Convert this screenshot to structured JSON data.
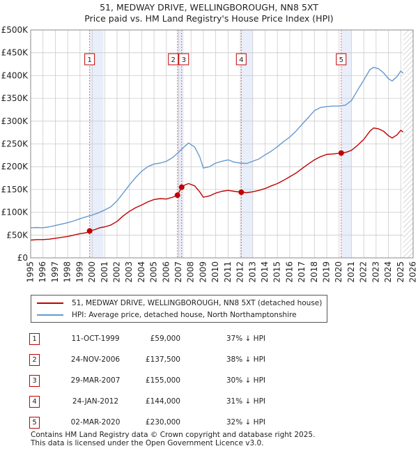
{
  "chart_data": {
    "type": "line",
    "title_line1": "51, MEDWAY DRIVE, WELLINGBOROUGH, NN8 5XT",
    "title_line2": "Price paid vs. HM Land Registry's House Price Index (HPI)",
    "xlim": [
      1995,
      2026
    ],
    "ylim": [
      0,
      500000
    ],
    "x_ticks": [
      1995,
      1996,
      1997,
      1998,
      1999,
      2000,
      2001,
      2002,
      2003,
      2004,
      2005,
      2006,
      2007,
      2008,
      2009,
      2010,
      2011,
      2012,
      2013,
      2014,
      2015,
      2016,
      2017,
      2018,
      2019,
      2020,
      2021,
      2022,
      2023,
      2024,
      2025,
      2026
    ],
    "y_ticks": [
      {
        "value": 0,
        "label": "£0"
      },
      {
        "value": 50000,
        "label": "£50K"
      },
      {
        "value": 100000,
        "label": "£100K"
      },
      {
        "value": 150000,
        "label": "£150K"
      },
      {
        "value": 200000,
        "label": "£200K"
      },
      {
        "value": 250000,
        "label": "£250K"
      },
      {
        "value": 300000,
        "label": "£300K"
      },
      {
        "value": 350000,
        "label": "£350K"
      },
      {
        "value": 400000,
        "label": "£400K"
      },
      {
        "value": 450000,
        "label": "£450K"
      },
      {
        "value": 500000,
        "label": "£500K"
      }
    ],
    "grid": true,
    "shaded_periods": [
      [
        1999.78,
        2000.9
      ],
      [
        2006.9,
        2007.4
      ],
      [
        2012.07,
        2013.0
      ],
      [
        2020.17,
        2021.0
      ]
    ],
    "hatch_from": 2025.2,
    "series": [
      {
        "name": "51, MEDWAY DRIVE, WELLINGBOROUGH, NN8 5XT (detached house)",
        "color": "#c00000",
        "points": [
          [
            1995.0,
            39000
          ],
          [
            1995.5,
            40000
          ],
          [
            1996.0,
            40000
          ],
          [
            1996.5,
            41000
          ],
          [
            1997.0,
            43000
          ],
          [
            1997.5,
            45000
          ],
          [
            1998.0,
            47000
          ],
          [
            1998.5,
            50000
          ],
          [
            1999.0,
            53000
          ],
          [
            1999.5,
            55000
          ],
          [
            1999.78,
            59000
          ],
          [
            2000.2,
            62000
          ],
          [
            2000.6,
            66000
          ],
          [
            2001.0,
            68000
          ],
          [
            2001.5,
            72000
          ],
          [
            2002.0,
            80000
          ],
          [
            2002.5,
            92000
          ],
          [
            2003.0,
            102000
          ],
          [
            2003.5,
            110000
          ],
          [
            2004.0,
            116000
          ],
          [
            2004.5,
            123000
          ],
          [
            2005.0,
            128000
          ],
          [
            2005.5,
            130000
          ],
          [
            2006.0,
            129000
          ],
          [
            2006.5,
            133000
          ],
          [
            2006.9,
            137500
          ],
          [
            2007.24,
            155000
          ],
          [
            2007.5,
            160000
          ],
          [
            2007.8,
            163000
          ],
          [
            2008.3,
            158000
          ],
          [
            2008.7,
            145000
          ],
          [
            2009.0,
            133000
          ],
          [
            2009.5,
            136000
          ],
          [
            2010.0,
            142000
          ],
          [
            2010.5,
            146000
          ],
          [
            2011.0,
            148000
          ],
          [
            2011.5,
            146000
          ],
          [
            2012.07,
            144000
          ],
          [
            2012.5,
            143000
          ],
          [
            2013.0,
            145000
          ],
          [
            2013.5,
            148000
          ],
          [
            2014.0,
            152000
          ],
          [
            2014.5,
            158000
          ],
          [
            2015.0,
            163000
          ],
          [
            2015.5,
            170000
          ],
          [
            2016.0,
            178000
          ],
          [
            2016.5,
            186000
          ],
          [
            2017.0,
            196000
          ],
          [
            2017.5,
            206000
          ],
          [
            2018.0,
            215000
          ],
          [
            2018.5,
            222000
          ],
          [
            2019.0,
            227000
          ],
          [
            2019.5,
            228000
          ],
          [
            2020.17,
            230000
          ],
          [
            2020.6,
            232000
          ],
          [
            2021.0,
            236000
          ],
          [
            2021.5,
            247000
          ],
          [
            2022.0,
            260000
          ],
          [
            2022.5,
            278000
          ],
          [
            2022.8,
            285000
          ],
          [
            2023.2,
            283000
          ],
          [
            2023.6,
            278000
          ],
          [
            2024.0,
            268000
          ],
          [
            2024.3,
            263000
          ],
          [
            2024.7,
            270000
          ],
          [
            2025.0,
            280000
          ],
          [
            2025.2,
            276000
          ]
        ]
      },
      {
        "name": "HPI: Average price, detached house, North Northamptonshire",
        "color": "#6699cc",
        "points": [
          [
            1995.0,
            66000
          ],
          [
            1995.5,
            66500
          ],
          [
            1996.0,
            66000
          ],
          [
            1996.5,
            68000
          ],
          [
            1997.0,
            71000
          ],
          [
            1997.5,
            74000
          ],
          [
            1998.0,
            77000
          ],
          [
            1998.5,
            81000
          ],
          [
            1999.0,
            86000
          ],
          [
            1999.5,
            90000
          ],
          [
            2000.0,
            94000
          ],
          [
            2000.5,
            99000
          ],
          [
            2001.0,
            105000
          ],
          [
            2001.5,
            112000
          ],
          [
            2002.0,
            125000
          ],
          [
            2002.5,
            142000
          ],
          [
            2003.0,
            160000
          ],
          [
            2003.5,
            176000
          ],
          [
            2004.0,
            190000
          ],
          [
            2004.5,
            200000
          ],
          [
            2005.0,
            206000
          ],
          [
            2005.5,
            208000
          ],
          [
            2006.0,
            212000
          ],
          [
            2006.5,
            220000
          ],
          [
            2007.0,
            232000
          ],
          [
            2007.5,
            245000
          ],
          [
            2007.8,
            252000
          ],
          [
            2008.3,
            243000
          ],
          [
            2008.7,
            222000
          ],
          [
            2009.0,
            197000
          ],
          [
            2009.5,
            200000
          ],
          [
            2010.0,
            208000
          ],
          [
            2010.5,
            212000
          ],
          [
            2011.0,
            215000
          ],
          [
            2011.5,
            210000
          ],
          [
            2012.0,
            208000
          ],
          [
            2012.5,
            207000
          ],
          [
            2013.0,
            212000
          ],
          [
            2013.5,
            217000
          ],
          [
            2014.0,
            226000
          ],
          [
            2014.5,
            234000
          ],
          [
            2015.0,
            244000
          ],
          [
            2015.5,
            255000
          ],
          [
            2016.0,
            265000
          ],
          [
            2016.5,
            278000
          ],
          [
            2017.0,
            293000
          ],
          [
            2017.5,
            308000
          ],
          [
            2018.0,
            323000
          ],
          [
            2018.5,
            330000
          ],
          [
            2019.0,
            332000
          ],
          [
            2019.5,
            333000
          ],
          [
            2020.0,
            333000
          ],
          [
            2020.5,
            335000
          ],
          [
            2021.0,
            345000
          ],
          [
            2021.5,
            368000
          ],
          [
            2022.0,
            390000
          ],
          [
            2022.5,
            413000
          ],
          [
            2022.8,
            418000
          ],
          [
            2023.2,
            415000
          ],
          [
            2023.6,
            406000
          ],
          [
            2024.0,
            393000
          ],
          [
            2024.3,
            388000
          ],
          [
            2024.7,
            398000
          ],
          [
            2025.0,
            410000
          ],
          [
            2025.2,
            405000
          ]
        ]
      }
    ],
    "sales": [
      {
        "num": "1",
        "x": 1999.78,
        "price": 59000
      },
      {
        "num": "2",
        "x": 2006.9,
        "price": 137500
      },
      {
        "num": "3",
        "x": 2007.24,
        "price": 155000
      },
      {
        "num": "4",
        "x": 2012.07,
        "price": 144000
      },
      {
        "num": "5",
        "x": 2020.17,
        "price": 230000
      }
    ]
  },
  "legend": {
    "property_label": "51, MEDWAY DRIVE, WELLINGBOROUGH, NN8 5XT (detached house)",
    "hpi_label": "HPI: Average price, detached house, North Northamptonshire"
  },
  "table": [
    {
      "num": "1",
      "date": "11-OCT-1999",
      "price": "£59,000",
      "hpi": "37% ↓ HPI"
    },
    {
      "num": "2",
      "date": "24-NOV-2006",
      "price": "£137,500",
      "hpi": "38% ↓ HPI"
    },
    {
      "num": "3",
      "date": "29-MAR-2007",
      "price": "£155,000",
      "hpi": "30% ↓ HPI"
    },
    {
      "num": "4",
      "date": "24-JAN-2012",
      "price": "£144,000",
      "hpi": "31% ↓ HPI"
    },
    {
      "num": "5",
      "date": "02-MAR-2020",
      "price": "£230,000",
      "hpi": "32% ↓ HPI"
    }
  ],
  "footer": {
    "line1": "Contains HM Land Registry data © Crown copyright and database right 2025.",
    "line2": "This data is licensed under the Open Government Licence v3.0."
  },
  "colors": {
    "property": "#c00000",
    "hpi": "#6699cc",
    "shade": "#e8eefa",
    "grid": "#cccccc"
  }
}
